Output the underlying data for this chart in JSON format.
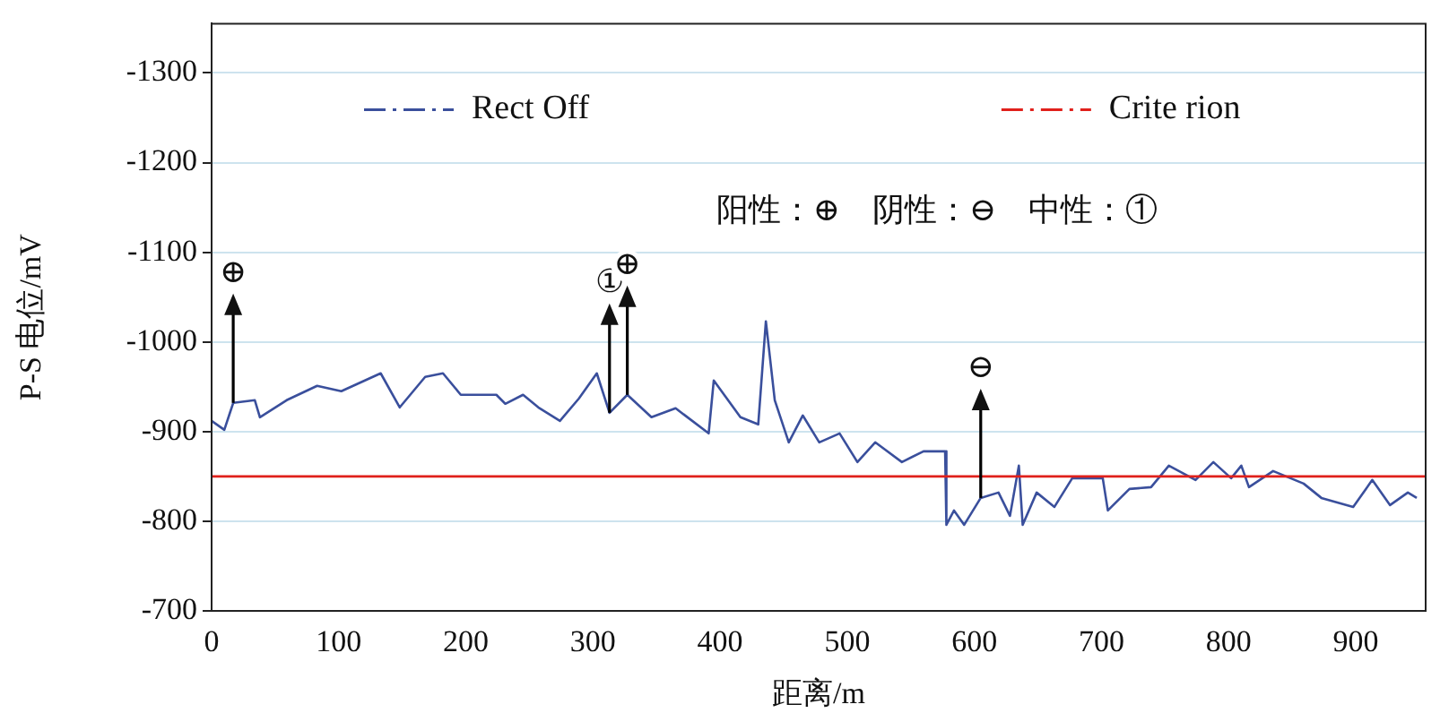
{
  "chart_data": {
    "type": "line",
    "xlabel": "距离/m",
    "ylabel": "P-S 电位/mV",
    "xlim": [
      0,
      955
    ],
    "xticks": [
      0,
      100,
      200,
      300,
      400,
      500,
      600,
      700,
      800,
      900
    ],
    "ylim": [
      -700,
      -1355
    ],
    "yticks": [
      -700,
      -800,
      -900,
      -1000,
      -1100,
      -1200,
      -1300
    ],
    "grid": "y",
    "legend": "top",
    "marker": "none",
    "series": [
      {
        "name": "Rect Off",
        "color": "#3a4f9c",
        "x": [
          0,
          10,
          17,
          34,
          38,
          59,
          83,
          102,
          133,
          148,
          168,
          182,
          196,
          224,
          231,
          245,
          257,
          274,
          289,
          303,
          313,
          327,
          346,
          365,
          391,
          395,
          416,
          430,
          436,
          443,
          454,
          465,
          478,
          494,
          508,
          522,
          543,
          560,
          577,
          578,
          584,
          592,
          605,
          619,
          628,
          635,
          638,
          649,
          663,
          677,
          701,
          705,
          722,
          739,
          753,
          774,
          788,
          802,
          810,
          816,
          835,
          859,
          873,
          898,
          913,
          927,
          941,
          948
        ],
        "values": [
          -912,
          -902,
          -932,
          -935,
          -916,
          -935,
          -951,
          -945,
          -965,
          -927,
          -961,
          -965,
          -941,
          -941,
          -931,
          -941,
          -927,
          -912,
          -937,
          -965,
          -921,
          -941,
          -916,
          -926,
          -898,
          -957,
          -916,
          -908,
          -1023,
          -935,
          -888,
          -918,
          -888,
          -898,
          -866,
          -888,
          -866,
          -878,
          -878,
          -796,
          -812,
          -796,
          -826,
          -832,
          -806,
          -862,
          -796,
          -832,
          -816,
          -848,
          -848,
          -812,
          -836,
          -838,
          -862,
          -846,
          -866,
          -848,
          -862,
          -838,
          -856,
          -842,
          -826,
          -816,
          -846,
          -818,
          -832,
          -826
        ]
      },
      {
        "name": "Crite rion",
        "color": "#e0201b",
        "x": [
          0,
          955
        ],
        "values": [
          -850,
          -850
        ]
      }
    ],
    "annotations": [
      "阳性：⊕　阴性：⊖　中性：①",
      {
        "text": "⊕",
        "x": 17,
        "y": -932
      },
      {
        "text": "①",
        "x": 313,
        "y": -921
      },
      {
        "text": "⊕",
        "x": 327,
        "y": -941
      },
      {
        "text": "⊖",
        "x": 605,
        "y": -826
      }
    ]
  }
}
